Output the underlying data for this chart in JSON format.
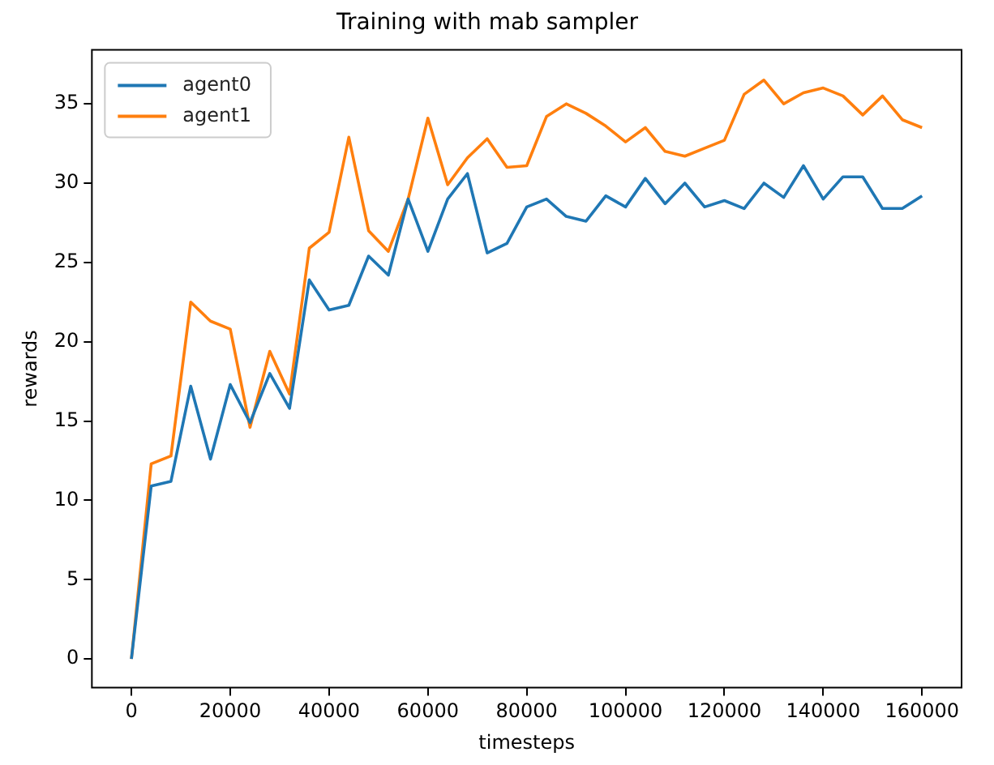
{
  "chart_data": {
    "type": "line",
    "title": "Training with mab sampler",
    "xlabel": "timesteps",
    "ylabel": "rewards",
    "x": [
      0,
      4000,
      8000,
      12000,
      16000,
      20000,
      24000,
      28000,
      32000,
      36000,
      40000,
      44000,
      48000,
      52000,
      56000,
      60000,
      64000,
      68000,
      72000,
      76000,
      80000,
      84000,
      88000,
      92000,
      96000,
      100000,
      104000,
      108000,
      112000,
      116000,
      120000,
      124000,
      128000,
      132000,
      136000,
      140000,
      144000,
      148000,
      152000,
      156000,
      160000
    ],
    "series": [
      {
        "name": "agent0",
        "color": "#1f77b4",
        "values": [
          0,
          10.9,
          11.2,
          17.2,
          12.6,
          17.3,
          14.9,
          18.0,
          15.8,
          23.9,
          22.0,
          22.3,
          25.4,
          24.2,
          29.0,
          25.7,
          29.0,
          30.6,
          25.6,
          26.2,
          28.5,
          29.0,
          27.9,
          27.6,
          29.2,
          28.5,
          30.3,
          28.7,
          30.0,
          28.5,
          28.9,
          28.4,
          30.0,
          29.1,
          31.1,
          29.0,
          30.4,
          30.4,
          28.4,
          28.4,
          29.2
        ]
      },
      {
        "name": "agent1",
        "color": "#ff7f0e",
        "values": [
          0,
          12.3,
          12.8,
          22.5,
          21.3,
          20.8,
          14.6,
          19.4,
          16.7,
          25.9,
          26.9,
          32.9,
          27.0,
          25.7,
          29.0,
          34.1,
          29.9,
          31.6,
          32.8,
          31.0,
          31.1,
          34.2,
          35.0,
          34.4,
          33.6,
          32.6,
          33.5,
          32.0,
          31.7,
          32.2,
          32.7,
          35.6,
          36.5,
          35.0,
          35.7,
          36.0,
          35.5,
          34.3,
          35.5,
          34.0,
          33.5
        ]
      }
    ],
    "xlim": [
      -8000,
      168000
    ],
    "xticks": [
      0,
      20000,
      40000,
      60000,
      80000,
      100000,
      120000,
      140000,
      160000
    ],
    "ylim": [
      -1.8,
      38.4
    ],
    "yticks": [
      0,
      5,
      10,
      15,
      20,
      25,
      30,
      35
    ],
    "grid": false,
    "legend": "top left",
    "marker": "none",
    "line_style": "solid"
  }
}
